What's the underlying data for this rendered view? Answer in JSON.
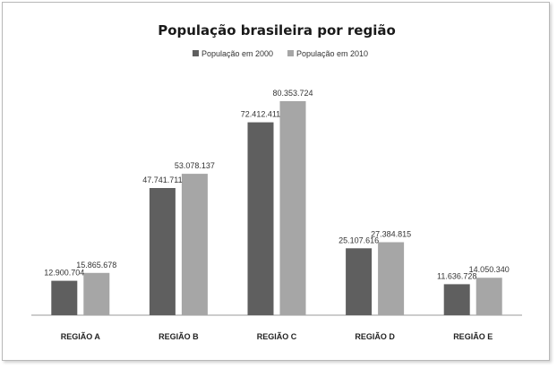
{
  "chart_data": {
    "type": "bar",
    "title": "População brasileira por região",
    "categories": [
      "REGIÃO A",
      "REGIÃO B",
      "REGIÃO C",
      "REGIÃO D",
      "REGIÃO E"
    ],
    "series": [
      {
        "name": "População em 2000",
        "color": "#5f5f5f",
        "values": [
          12900704,
          47741711,
          72412411,
          25107616,
          11636728
        ],
        "labels": [
          "12.900.704",
          "47.741.711",
          "72.412.411",
          "25.107.616",
          "11.636.728"
        ]
      },
      {
        "name": "População em 2010",
        "color": "#a6a6a6",
        "values": [
          15865678,
          53078137,
          80353724,
          27384815,
          14050340
        ],
        "labels": [
          "15.865.678",
          "53.078.137",
          "80.353.724",
          "27.384.815",
          "14.050.340"
        ]
      }
    ],
    "ylim": [
      0,
      85000000
    ],
    "legend": "top-center",
    "grid": false,
    "xlabel": "",
    "ylabel": ""
  }
}
